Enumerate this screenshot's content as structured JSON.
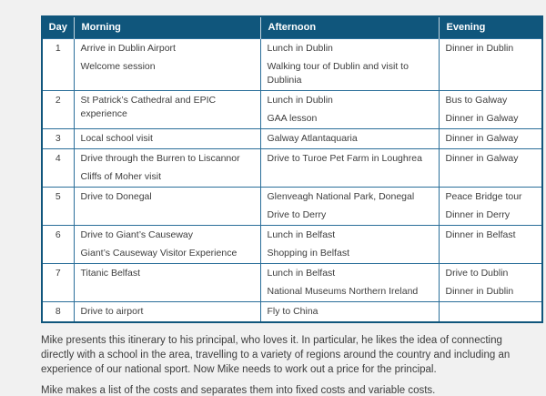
{
  "colors": {
    "header_bg": "#10567c",
    "header_text": "#ffffff",
    "border": "#2a6e99",
    "body_text": "#3d3d3d",
    "page_bg": "#f1f1f1",
    "cell_bg": "#ffffff"
  },
  "table": {
    "headers": [
      "Day",
      "Morning",
      "Afternoon",
      "Evening"
    ],
    "rows": [
      {
        "day": "1",
        "morning": [
          "Arrive in Dublin Airport",
          "Welcome session"
        ],
        "afternoon": [
          "Lunch in Dublin",
          "Walking tour of Dublin and visit to Dublinia"
        ],
        "evening": [
          "Dinner in Dublin"
        ]
      },
      {
        "day": "2",
        "morning": [
          "St Patrick’s Cathedral and EPIC experience"
        ],
        "afternoon": [
          "Lunch in Dublin",
          "GAA lesson"
        ],
        "evening": [
          "Bus to Galway",
          "Dinner in Galway"
        ]
      },
      {
        "day": "3",
        "morning": [
          "Local school visit"
        ],
        "afternoon": [
          "Galway Atlantaquaria"
        ],
        "evening": [
          "Dinner in Galway"
        ]
      },
      {
        "day": "4",
        "morning": [
          "Drive through the Burren to Liscannor",
          "Cliffs of Moher visit"
        ],
        "afternoon": [
          "Drive to Turoe Pet Farm in Loughrea"
        ],
        "evening": [
          "Dinner in Galway"
        ]
      },
      {
        "day": "5",
        "morning": [
          "Drive to Donegal"
        ],
        "afternoon": [
          "Glenveagh National Park, Donegal",
          "Drive to Derry"
        ],
        "evening": [
          "Peace Bridge tour",
          "Dinner in Derry"
        ]
      },
      {
        "day": "6",
        "morning": [
          "Drive to Giant’s Causeway",
          "Giant’s Causeway Visitor Experience"
        ],
        "afternoon": [
          "Lunch in Belfast",
          "Shopping in Belfast"
        ],
        "evening": [
          "Dinner in Belfast"
        ]
      },
      {
        "day": "7",
        "morning": [
          "Titanic Belfast"
        ],
        "afternoon": [
          "Lunch in Belfast",
          "National Museums Northern Ireland"
        ],
        "evening": [
          "Drive to Dublin",
          "Dinner in Dublin"
        ]
      },
      {
        "day": "8",
        "morning": [
          "Drive to airport"
        ],
        "afternoon": [
          "Fly to China"
        ],
        "evening": []
      }
    ]
  },
  "paragraphs": [
    "Mike presents this itinerary to his principal, who loves it. In particular, he likes the idea of connecting directly with a school in the area, travelling to a variety of regions around the country and including an experience of our national sport. Now Mike needs to work out a price for the principal.",
    "Mike makes a list of the costs and separates them into fixed costs and variable costs."
  ]
}
